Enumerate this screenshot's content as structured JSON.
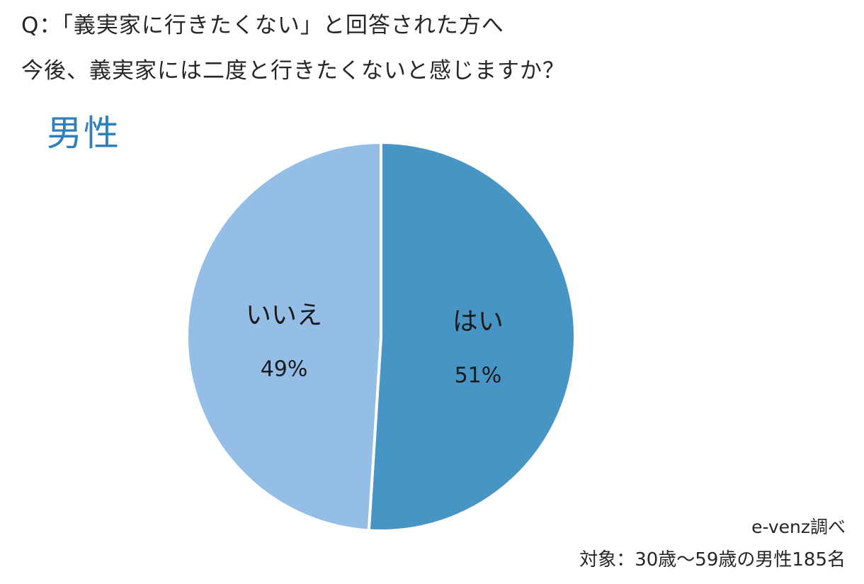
{
  "question": {
    "line1": "Q：「義実家に行きたくない」と回答された方へ",
    "line2": "今後、義実家には二度と行きたくないと感じますか？"
  },
  "gender_label": "男性",
  "colors": {
    "gender_label": "#2e7fbd",
    "yes": "#4795c5",
    "no": "#94bee5",
    "separator": "#ffffff"
  },
  "chart_data": {
    "type": "pie",
    "categories": [
      "はい",
      "いいえ"
    ],
    "values": [
      51,
      49
    ],
    "value_labels": [
      "51%",
      "49%"
    ],
    "unit": "%"
  },
  "footer": {
    "source": "e-venz調べ",
    "target": "対象：30歳～59歳の男性185名"
  }
}
